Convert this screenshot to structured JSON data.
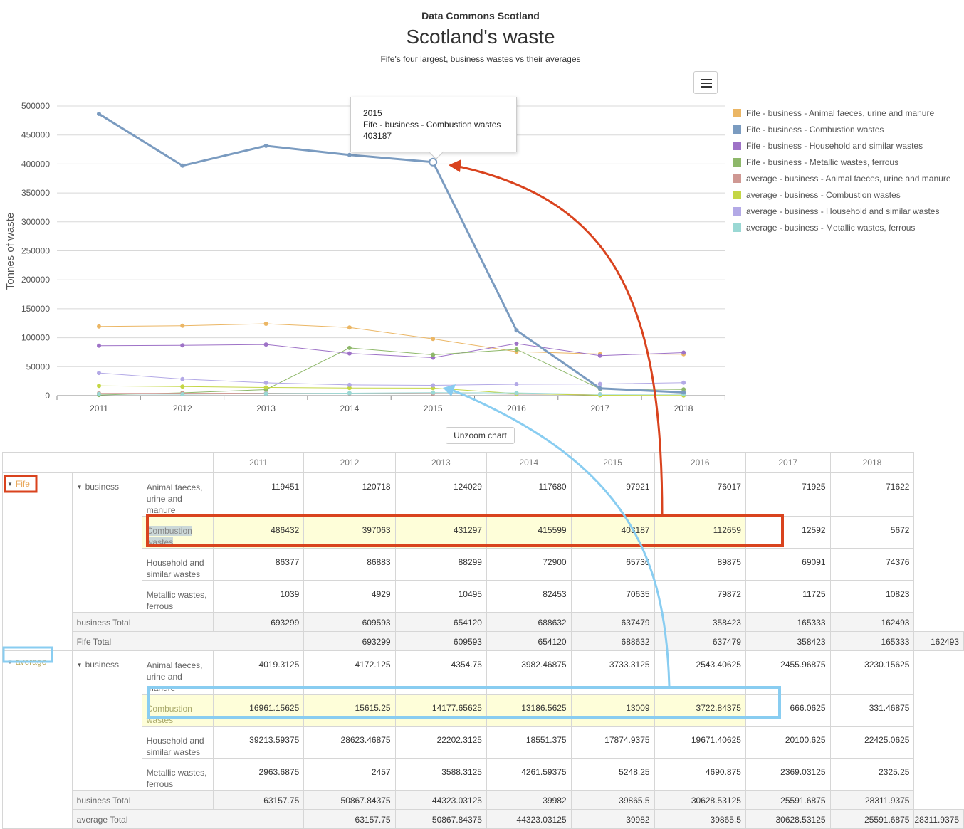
{
  "header": {
    "site": "Data Commons Scotland",
    "title": "Scotland's waste",
    "subtitle": "Fife's four largest, business wastes vs their averages"
  },
  "chart_data": {
    "type": "line",
    "title": "Scotland's waste",
    "subtitle": "Fife's four largest, business wastes vs their averages",
    "ylabel": "Tonnes of waste",
    "xlabel": "",
    "x": [
      "2011",
      "2012",
      "2013",
      "2014",
      "2015",
      "2016",
      "2017",
      "2018"
    ],
    "ylim": [
      0,
      500000
    ],
    "yticks": [
      "0",
      "50000",
      "100000",
      "150000",
      "200000",
      "250000",
      "300000",
      "350000",
      "400000",
      "450000",
      "500000"
    ],
    "legend_position": "right",
    "grid": true,
    "series": [
      {
        "name": "Fife - business - Animal faeces, urine and manure",
        "color": "#ebb664",
        "values": [
          119451,
          120718,
          124029,
          117680,
          97921,
          76017,
          71925,
          71622
        ]
      },
      {
        "name": "Fife - business - Combustion wastes",
        "color": "#7a9bc0",
        "values": [
          486432,
          397063,
          431297,
          415599,
          403187,
          112659,
          12592,
          5672
        ]
      },
      {
        "name": "Fife - business - Household and similar wastes",
        "color": "#9e72c7",
        "values": [
          86377,
          86883,
          88299,
          72900,
          65736,
          89875,
          69091,
          74376
        ]
      },
      {
        "name": "Fife - business - Metallic wastes, ferrous",
        "color": "#8eb86a",
        "values": [
          1039,
          4929,
          10495,
          82453,
          70635,
          79872,
          11725,
          10823
        ]
      },
      {
        "name": "average - business - Animal faeces, urine and manure",
        "color": "#cf9893",
        "values": [
          4019.3125,
          4172.125,
          4354.75,
          3982.46875,
          3733.3125,
          2543.40625,
          2455.96875,
          3230.15625
        ]
      },
      {
        "name": "average - business - Combustion wastes",
        "color": "#c4d645",
        "values": [
          16961.15625,
          15615.25,
          14177.65625,
          13186.5625,
          13009,
          3722.84375,
          666.0625,
          331.46875
        ]
      },
      {
        "name": "average - business - Household and similar wastes",
        "color": "#b3a9e6",
        "values": [
          39213.59375,
          28623.46875,
          22202.3125,
          18551.375,
          17874.9375,
          19671.40625,
          20100.625,
          22425.0625
        ]
      },
      {
        "name": "average - business - Metallic wastes, ferrous",
        "color": "#9ad8d4",
        "values": [
          2963.6875,
          2457,
          3588.3125,
          4261.59375,
          5248.25,
          4690.875,
          2369.03125,
          2325.25
        ]
      }
    ],
    "tooltip": {
      "x": "2015",
      "series": "Fife - business - Combustion wastes",
      "value": "403187"
    }
  },
  "controls": {
    "unzoom_label": "Unzoom chart",
    "menu_icon": "hamburger-icon"
  },
  "table": {
    "tool_icons": [
      "export-icon",
      "settings-icon"
    ],
    "years": [
      "2011",
      "2012",
      "2013",
      "2014",
      "2015",
      "2016",
      "2017",
      "2018"
    ],
    "groups": [
      {
        "label": "Fife",
        "sub": "business",
        "rows": [
          {
            "label": "Animal faeces, urine and manure",
            "values": [
              "119451",
              "120718",
              "124029",
              "117680",
              "97921",
              "76017",
              "71925",
              "71622"
            ]
          },
          {
            "label": "Combustion wastes",
            "values": [
              "486432",
              "397063",
              "431297",
              "415599",
              "403187",
              "112659",
              "12592",
              "5672"
            ]
          },
          {
            "label": "Household and similar wastes",
            "values": [
              "86377",
              "86883",
              "88299",
              "72900",
              "65736",
              "89875",
              "69091",
              "74376"
            ]
          },
          {
            "label": "Metallic wastes, ferrous",
            "values": [
              "1039",
              "4929",
              "10495",
              "82453",
              "70635",
              "79872",
              "11725",
              "10823"
            ]
          }
        ],
        "sub_total_label": "business Total",
        "sub_total": [
          "693299",
          "609593",
          "654120",
          "688632",
          "637479",
          "358423",
          "165333",
          "162493"
        ],
        "total_label": "Fife Total",
        "total": [
          "693299",
          "609593",
          "654120",
          "688632",
          "637479",
          "358423",
          "165333",
          "162493"
        ]
      },
      {
        "label": "average",
        "sub": "business",
        "rows": [
          {
            "label": "Animal faeces, urine and manure",
            "values": [
              "4019.3125",
              "4172.125",
              "4354.75",
              "3982.46875",
              "3733.3125",
              "2543.40625",
              "2455.96875",
              "3230.15625"
            ]
          },
          {
            "label": "Combustion wastes",
            "values": [
              "16961.15625",
              "15615.25",
              "14177.65625",
              "13186.5625",
              "13009",
              "3722.84375",
              "666.0625",
              "331.46875"
            ]
          },
          {
            "label": "Household and similar wastes",
            "values": [
              "39213.59375",
              "28623.46875",
              "22202.3125",
              "18551.375",
              "17874.9375",
              "19671.40625",
              "20100.625",
              "22425.0625"
            ]
          },
          {
            "label": "Metallic wastes, ferrous",
            "values": [
              "2963.6875",
              "2457",
              "3588.3125",
              "4261.59375",
              "5248.25",
              "4690.875",
              "2369.03125",
              "2325.25"
            ]
          }
        ],
        "sub_total_label": "business Total",
        "sub_total": [
          "63157.75",
          "50867.84375",
          "44323.03125",
          "39982",
          "39865.5",
          "30628.53125",
          "25591.6875",
          "28311.9375"
        ],
        "total_label": "average Total",
        "total": [
          "63157.75",
          "50867.84375",
          "44323.03125",
          "39982",
          "39865.5",
          "30628.53125",
          "25591.6875",
          "28311.9375"
        ]
      }
    ]
  },
  "annotations": {
    "fife_color": "#d9431e",
    "average_color": "#89cdf1"
  }
}
